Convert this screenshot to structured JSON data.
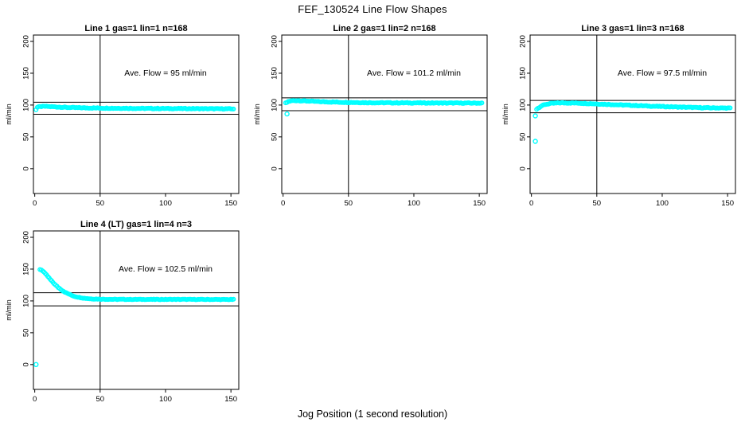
{
  "figure": {
    "title": "FEF_130524  Line Flow Shapes",
    "xlabel": "Jog Position (1 second resolution)",
    "background": "#ffffff",
    "point_color": "#00ffff",
    "axis_color": "#000000"
  },
  "chart_data": [
    {
      "type": "scatter",
      "title": "Line 1 gas=1 lin=1 n=168",
      "gas": 1,
      "lin": 1,
      "n": 168,
      "annotation": "Ave. Flow =  95  ml/min",
      "ave_flow_ml_min": 95,
      "ylabel": "ml/min",
      "xlim": [
        -1,
        156
      ],
      "ylim": [
        -39,
        210
      ],
      "xticks": [
        0,
        50,
        100,
        150
      ],
      "yticks": [
        0,
        50,
        100,
        150,
        200
      ],
      "vline_x": 50,
      "hlines": [
        104.5,
        85.5
      ],
      "x_start": 1,
      "x_end": 152,
      "jitter": 1.2,
      "curve_keypoints": [
        [
          1,
          93
        ],
        [
          2,
          96.5
        ],
        [
          4,
          97.5
        ],
        [
          8,
          98
        ],
        [
          14,
          97.3
        ],
        [
          25,
          96.2
        ],
        [
          40,
          95.5
        ],
        [
          60,
          95
        ],
        [
          90,
          94.6
        ],
        [
          120,
          94.4
        ],
        [
          152,
          94
        ]
      ],
      "outliers": []
    },
    {
      "type": "scatter",
      "title": "Line 2 gas=1 lin=2 n=168",
      "gas": 1,
      "lin": 2,
      "n": 168,
      "annotation": "Ave. Flow =  101.2  ml/min",
      "ave_flow_ml_min": 101.2,
      "ylabel": "ml/min",
      "xlim": [
        -1,
        156
      ],
      "ylim": [
        -39,
        210
      ],
      "xticks": [
        0,
        50,
        100,
        150
      ],
      "yticks": [
        0,
        50,
        100,
        150,
        200
      ],
      "vline_x": 50,
      "hlines": [
        111.3,
        91.1
      ],
      "x_start": 2,
      "x_end": 152,
      "jitter": 1.2,
      "curve_keypoints": [
        [
          2,
          103
        ],
        [
          4,
          105.5
        ],
        [
          7,
          106.8
        ],
        [
          11,
          107
        ],
        [
          18,
          106.3
        ],
        [
          28,
          105.3
        ],
        [
          45,
          104.3
        ],
        [
          70,
          103.6
        ],
        [
          100,
          103.3
        ],
        [
          152,
          103
        ]
      ],
      "outliers": [
        [
          3,
          86
        ]
      ]
    },
    {
      "type": "scatter",
      "title": "Line 3 gas=1 lin=3 n=168",
      "gas": 1,
      "lin": 3,
      "n": 168,
      "annotation": "Ave. Flow =  97.5  ml/min",
      "ave_flow_ml_min": 97.5,
      "ylabel": "ml/min",
      "xlim": [
        -1,
        156
      ],
      "ylim": [
        -39,
        210
      ],
      "xticks": [
        0,
        50,
        100,
        150
      ],
      "yticks": [
        0,
        50,
        100,
        150,
        200
      ],
      "vline_x": 50,
      "hlines": [
        107.3,
        87.8
      ],
      "x_start": 4,
      "x_end": 152,
      "jitter": 1.2,
      "curve_keypoints": [
        [
          4,
          93.5
        ],
        [
          6,
          96.5
        ],
        [
          8,
          99
        ],
        [
          11,
          101
        ],
        [
          15,
          102.5
        ],
        [
          22,
          103.4
        ],
        [
          35,
          103.1
        ],
        [
          50,
          101.8
        ],
        [
          70,
          100
        ],
        [
          90,
          98.4
        ],
        [
          110,
          97
        ],
        [
          130,
          95.8
        ],
        [
          152,
          95.2
        ]
      ],
      "outliers": [
        [
          3,
          83
        ],
        [
          3,
          43
        ]
      ]
    },
    {
      "type": "scatter",
      "title": "Line 4 (LT) gas=1 lin=4 n=3",
      "gas": 1,
      "lin": 4,
      "n": 3,
      "annotation": "Ave. Flow =  102.5  ml/min",
      "ave_flow_ml_min": 102.5,
      "ylabel": "ml/min",
      "xlim": [
        -1,
        156
      ],
      "ylim": [
        -39,
        210
      ],
      "xticks": [
        0,
        50,
        100,
        150
      ],
      "yticks": [
        0,
        50,
        100,
        150,
        200
      ],
      "vline_x": 50,
      "hlines": [
        112.8,
        92.3
      ],
      "x_start": 4,
      "x_end": 152,
      "jitter": 0.9,
      "curve_keypoints": [
        [
          4,
          149.5
        ],
        [
          5,
          148.8
        ],
        [
          6,
          147.5
        ],
        [
          7,
          145.5
        ],
        [
          8,
          143
        ],
        [
          10,
          138.5
        ],
        [
          12,
          133.5
        ],
        [
          14,
          129
        ],
        [
          16,
          124.8
        ],
        [
          18,
          121
        ],
        [
          21,
          116.5
        ],
        [
          24,
          112.8
        ],
        [
          27,
          109.8
        ],
        [
          30,
          107.5
        ],
        [
          34,
          105.5
        ],
        [
          38,
          104.2
        ],
        [
          43,
          103.3
        ],
        [
          50,
          102.8
        ],
        [
          60,
          102.5
        ],
        [
          80,
          102.4
        ],
        [
          110,
          102.4
        ],
        [
          152,
          102.2
        ]
      ],
      "outliers": [
        [
          1,
          0
        ]
      ]
    }
  ]
}
